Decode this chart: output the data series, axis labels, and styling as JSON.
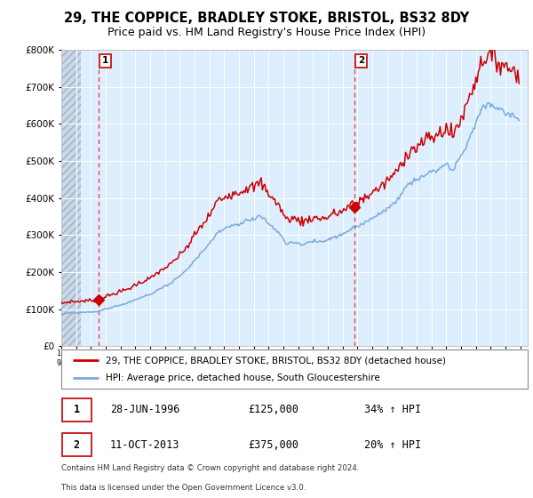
{
  "title_line1": "29, THE COPPICE, BRADLEY STOKE, BRISTOL, BS32 8DY",
  "title_line2": "Price paid vs. HM Land Registry's House Price Index (HPI)",
  "legend_line1": "29, THE COPPICE, BRADLEY STOKE, BRISTOL, BS32 8DY (detached house)",
  "legend_line2": "HPI: Average price, detached house, South Gloucestershire",
  "annotation1_date": "28-JUN-1996",
  "annotation1_price": "£125,000",
  "annotation1_hpi": "34% ↑ HPI",
  "annotation2_date": "11-OCT-2013",
  "annotation2_price": "£375,000",
  "annotation2_hpi": "20% ↑ HPI",
  "footnote_line1": "Contains HM Land Registry data © Crown copyright and database right 2024.",
  "footnote_line2": "This data is licensed under the Open Government Licence v3.0.",
  "sale1_year": 1996.49,
  "sale1_price": 125000,
  "sale2_year": 2013.78,
  "sale2_price": 375000,
  "property_color": "#cc0000",
  "hpi_color": "#7aaadd",
  "vline_color": "#ee3333",
  "marker_color": "#cc0000",
  "plot_bg": "#ddeeff",
  "hatch_color": "#aabbcc",
  "ylim_max": 800000,
  "ylim_min": 0,
  "xmin": 1994.0,
  "xmax": 2025.5
}
